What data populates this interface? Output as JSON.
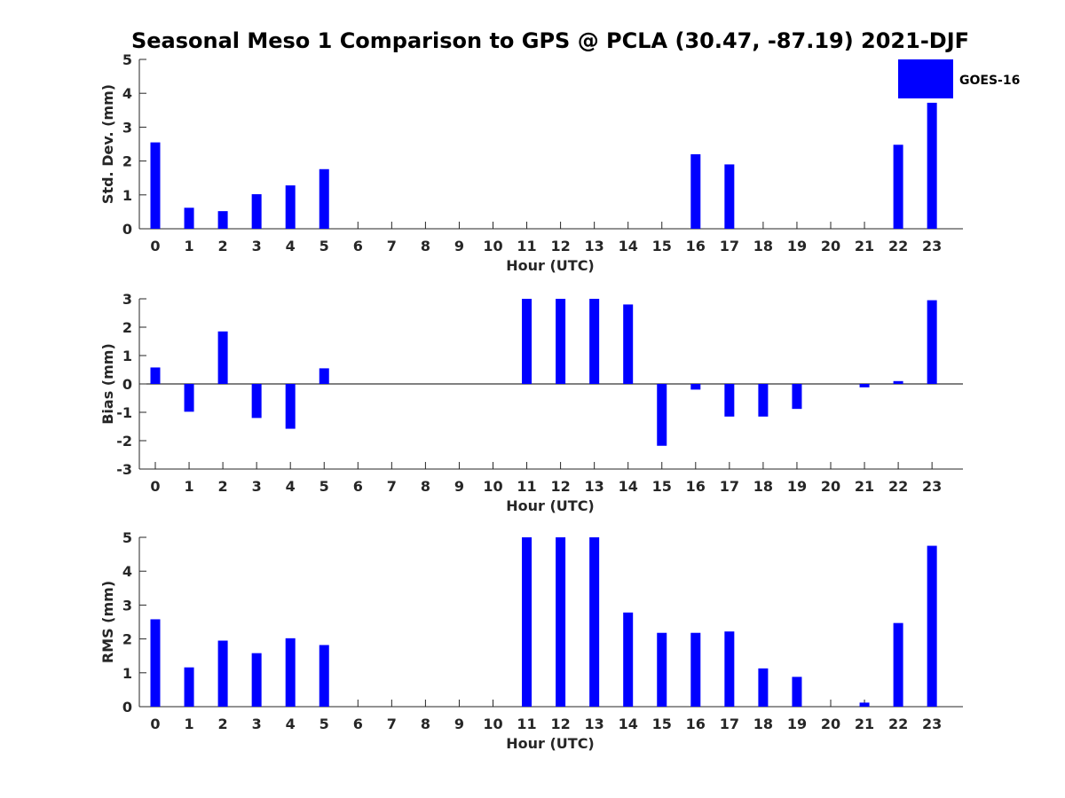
{
  "figure": {
    "title": "Seasonal Meso 1 Comparison to GPS @ PCLA (30.47, -87.19) 2021-DJF"
  },
  "legend": {
    "label": "GOES-16",
    "color": "#0000ff"
  },
  "colors": {
    "bar": "#0000ff",
    "axis": "#262626",
    "background": "#ffffff"
  },
  "chart_data": [
    {
      "type": "bar",
      "ylabel": "Std. Dev. (mm)",
      "xlabel": "Hour (UTC)",
      "ylim": [
        0,
        5
      ],
      "yticks": [
        "0",
        "1",
        "2",
        "3",
        "4",
        "5"
      ],
      "categories": [
        "0",
        "1",
        "2",
        "3",
        "4",
        "5",
        "6",
        "7",
        "8",
        "9",
        "10",
        "11",
        "12",
        "13",
        "14",
        "15",
        "16",
        "17",
        "18",
        "19",
        "20",
        "21",
        "22",
        "23"
      ],
      "series": [
        {
          "name": "GOES-16",
          "values": [
            2.55,
            0.62,
            0.52,
            1.02,
            1.28,
            1.76,
            null,
            null,
            null,
            null,
            null,
            null,
            null,
            null,
            null,
            null,
            2.2,
            1.9,
            null,
            null,
            null,
            null,
            2.48,
            3.72
          ]
        }
      ]
    },
    {
      "type": "bar",
      "ylabel": "Bias (mm)",
      "xlabel": "Hour (UTC)",
      "ylim": [
        -3,
        3
      ],
      "yticks": [
        "-3",
        "-2",
        "-1",
        "0",
        "1",
        "2",
        "3"
      ],
      "categories": [
        "0",
        "1",
        "2",
        "3",
        "4",
        "5",
        "6",
        "7",
        "8",
        "9",
        "10",
        "11",
        "12",
        "13",
        "14",
        "15",
        "16",
        "17",
        "18",
        "19",
        "20",
        "21",
        "22",
        "23"
      ],
      "series": [
        {
          "name": "GOES-16",
          "values": [
            0.58,
            -0.98,
            1.85,
            -1.2,
            -1.58,
            0.55,
            null,
            null,
            null,
            null,
            null,
            3.0,
            3.0,
            3.0,
            2.8,
            -2.18,
            -0.2,
            -1.15,
            -1.15,
            -0.88,
            null,
            -0.12,
            0.1,
            2.95
          ]
        }
      ]
    },
    {
      "type": "bar",
      "ylabel": "RMS (mm)",
      "xlabel": "Hour (UTC)",
      "ylim": [
        0,
        5
      ],
      "yticks": [
        "0",
        "1",
        "2",
        "3",
        "4",
        "5"
      ],
      "categories": [
        "0",
        "1",
        "2",
        "3",
        "4",
        "5",
        "6",
        "7",
        "8",
        "9",
        "10",
        "11",
        "12",
        "13",
        "14",
        "15",
        "16",
        "17",
        "18",
        "19",
        "20",
        "21",
        "22",
        "23"
      ],
      "series": [
        {
          "name": "GOES-16",
          "values": [
            2.58,
            1.16,
            1.95,
            1.58,
            2.02,
            1.82,
            null,
            null,
            null,
            null,
            null,
            5.0,
            5.0,
            5.0,
            2.78,
            2.18,
            2.18,
            2.22,
            1.13,
            0.88,
            null,
            0.12,
            2.47,
            4.75
          ]
        }
      ]
    }
  ]
}
